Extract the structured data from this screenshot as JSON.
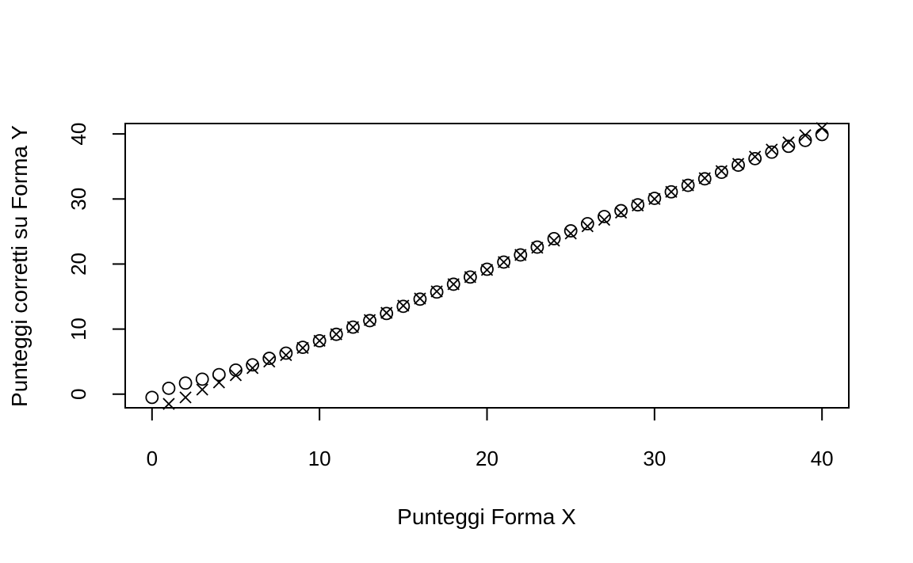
{
  "chart_data": {
    "type": "scatter",
    "title": "",
    "xlabel": "Punteggi Forma X",
    "ylabel": "Punteggi corretti su Forma Y",
    "xlim": [
      -1.6,
      41.6
    ],
    "ylim": [
      -2.1,
      41.6
    ],
    "x_ticks": [
      0,
      10,
      20,
      30,
      40
    ],
    "y_ticks": [
      0,
      10,
      20,
      30,
      40
    ],
    "grid": false,
    "legend": "none",
    "series": [
      {
        "marker": "circle",
        "x": [
          0,
          1,
          2,
          3,
          4,
          5,
          6,
          7,
          8,
          9,
          10,
          11,
          12,
          13,
          14,
          15,
          16,
          17,
          18,
          19,
          20,
          21,
          22,
          23,
          24,
          25,
          26,
          27,
          28,
          29,
          30,
          31,
          32,
          33,
          34,
          35,
          36,
          37,
          38,
          39,
          40
        ],
        "y": [
          -0.5,
          0.9,
          1.7,
          2.3,
          3.0,
          3.7,
          4.5,
          5.5,
          6.3,
          7.2,
          8.2,
          9.2,
          10.3,
          11.3,
          12.4,
          13.5,
          14.6,
          15.7,
          16.9,
          18.0,
          19.2,
          20.3,
          21.4,
          22.6,
          23.9,
          25.1,
          26.2,
          27.3,
          28.2,
          29.1,
          30.1,
          31.1,
          32.1,
          33.1,
          34.1,
          35.2,
          36.2,
          37.2,
          38.1,
          39.0,
          39.9
        ]
      },
      {
        "marker": "cross",
        "x": [
          1,
          2,
          3,
          4,
          5,
          6,
          7,
          8,
          9,
          10,
          11,
          12,
          13,
          14,
          15,
          16,
          17,
          18,
          19,
          20,
          21,
          22,
          23,
          24,
          25,
          26,
          27,
          28,
          29,
          30,
          31,
          32,
          33,
          34,
          35,
          36,
          37,
          38,
          39,
          40
        ],
        "y": [
          -1.5,
          -0.5,
          0.7,
          1.8,
          2.9,
          4.0,
          5.0,
          6.0,
          7.1,
          8.2,
          9.2,
          10.3,
          11.4,
          12.5,
          13.6,
          14.7,
          15.8,
          16.9,
          18.0,
          19.1,
          20.3,
          21.4,
          22.5,
          23.6,
          24.7,
          25.8,
          26.8,
          27.9,
          29.0,
          30.0,
          31.1,
          32.1,
          33.2,
          34.3,
          35.4,
          36.5,
          37.6,
          38.7,
          39.8,
          40.9
        ]
      }
    ]
  }
}
